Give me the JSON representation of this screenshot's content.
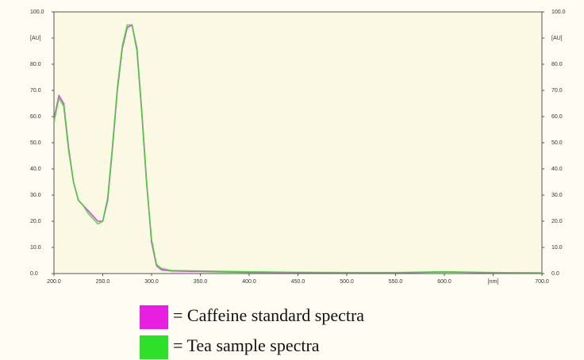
{
  "chart_data": {
    "type": "line",
    "x": [
      200,
      205,
      210,
      215,
      220,
      225,
      230,
      235,
      240,
      245,
      250,
      255,
      260,
      265,
      270,
      275,
      280,
      285,
      290,
      295,
      300,
      305,
      310,
      320,
      350,
      400,
      450,
      500,
      550,
      600,
      650,
      700
    ],
    "series": [
      {
        "name": "= Caffeine standard spectra",
        "color": "#e81ee0",
        "values": [
          59,
          68,
          65,
          48,
          35,
          28,
          26,
          24,
          22,
          20,
          20,
          28,
          48,
          70,
          86,
          94,
          95,
          86,
          62,
          35,
          12,
          3,
          1.5,
          1,
          0.8,
          0.5,
          0.4,
          0.3,
          0.3,
          0.6,
          0.3,
          0.2
        ]
      },
      {
        "name": "= Tea sample spectra",
        "color": "#2fe02a",
        "values": [
          58,
          67,
          64,
          47,
          35,
          28,
          26,
          23,
          21,
          19,
          20,
          29,
          49,
          71,
          87,
          95,
          95,
          85,
          61,
          34,
          13,
          3.5,
          2,
          1.2,
          1,
          0.7,
          0.5,
          0.4,
          0.4,
          0.7,
          0.4,
          0.3
        ]
      }
    ],
    "xlim": [
      200,
      700
    ],
    "xticks": [
      {
        "value": 200,
        "label": "200.0"
      },
      {
        "value": 250,
        "label": "250.0"
      },
      {
        "value": 300,
        "label": "300.0"
      },
      {
        "value": 350,
        "label": "350.0"
      },
      {
        "value": 400,
        "label": "400.0"
      },
      {
        "value": 450,
        "label": "450.0"
      },
      {
        "value": 500,
        "label": "500.0"
      },
      {
        "value": 550,
        "label": "550.0"
      },
      {
        "value": 600,
        "label": "600.0"
      },
      {
        "value": 650,
        "label": "[nm]"
      },
      {
        "value": 700,
        "label": "700.0"
      }
    ],
    "ylim": [
      0,
      100
    ],
    "yticks": [
      {
        "value": 0,
        "label": "0.0"
      },
      {
        "value": 10,
        "label": "10.0"
      },
      {
        "value": 20,
        "label": "20.0"
      },
      {
        "value": 30,
        "label": "30.0"
      },
      {
        "value": 40,
        "label": "40.0"
      },
      {
        "value": 50,
        "label": "50.0"
      },
      {
        "value": 60,
        "label": "60.0"
      },
      {
        "value": 70,
        "label": "70.0"
      },
      {
        "value": 80,
        "label": "80.0"
      },
      {
        "value": 90,
        "label": "[AU]"
      },
      {
        "value": 100,
        "label": "100.0"
      }
    ],
    "y2lim": [
      0,
      100
    ],
    "y2ticks": [
      {
        "value": 0,
        "label": "0.0"
      },
      {
        "value": 10,
        "label": "10.0"
      },
      {
        "value": 20,
        "label": "20.0"
      },
      {
        "value": 30,
        "label": "30.0"
      },
      {
        "value": 40,
        "label": "40.0"
      },
      {
        "value": 50,
        "label": "50.0"
      },
      {
        "value": 60,
        "label": "60.0"
      },
      {
        "value": 70,
        "label": "70.0"
      },
      {
        "value": 80,
        "label": "80.0"
      },
      {
        "value": 90,
        "label": "[AU]"
      },
      {
        "value": 100,
        "label": "100.0"
      }
    ]
  }
}
